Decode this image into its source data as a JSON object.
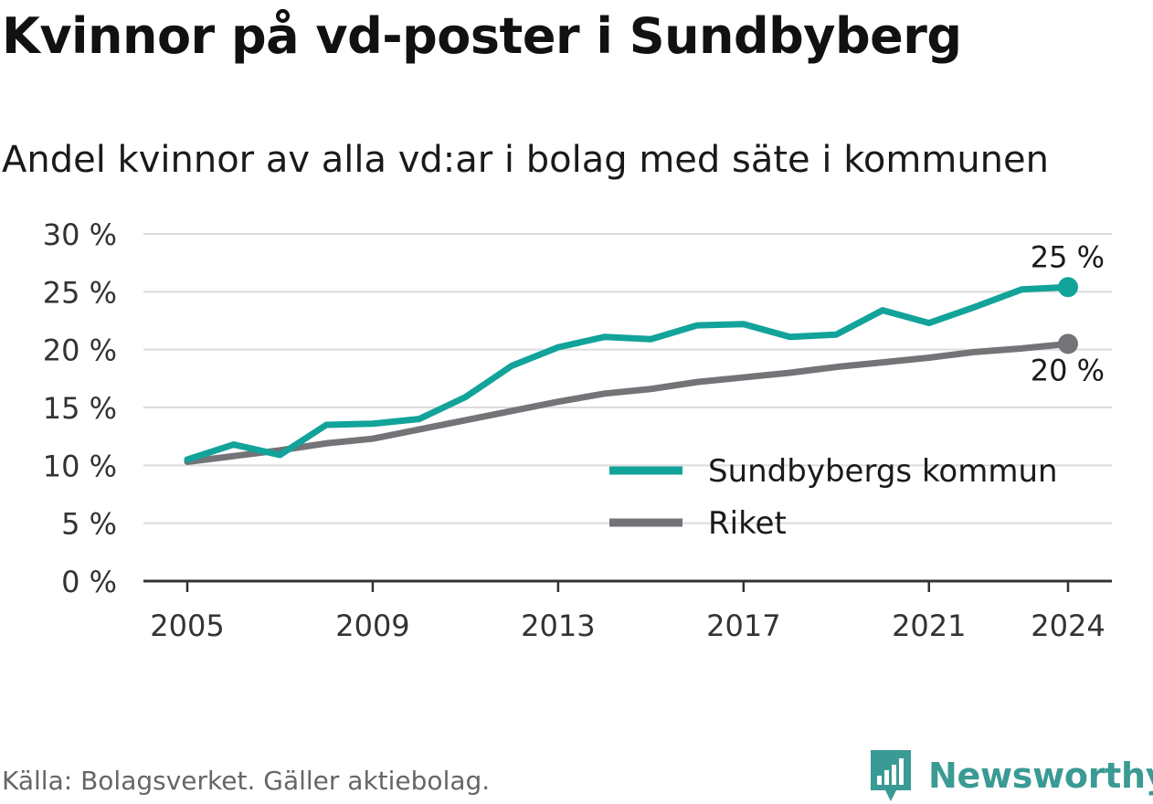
{
  "header": {
    "title": "Kvinnor på vd-poster i Sundbyberg",
    "subtitle": "Andel kvinnor av alla vd:ar i bolag med säte i kommunen"
  },
  "footer": {
    "source": "Källa: Bolagsverket. Gäller aktiebolag.",
    "brand": "Newsworthy"
  },
  "colors": {
    "sundbyberg": "#12a39a",
    "riket": "#737378",
    "grid": "#dcdcdc",
    "axis": "#333333",
    "brand": "#3a9a94"
  },
  "chart_data": {
    "type": "line",
    "title": "Kvinnor på vd-poster i Sundbyberg",
    "subtitle": "Andel kvinnor av alla vd:ar i bolag med säte i kommunen",
    "xlabel": "",
    "ylabel": "",
    "x": [
      2005,
      2006,
      2007,
      2008,
      2009,
      2010,
      2011,
      2012,
      2013,
      2014,
      2015,
      2016,
      2017,
      2018,
      2019,
      2020,
      2021,
      2022,
      2023,
      2024
    ],
    "x_ticks": [
      "2005",
      "2009",
      "2013",
      "2017",
      "2021",
      "2024"
    ],
    "ylim": [
      0,
      30
    ],
    "y_ticks": [
      "0 %",
      "5 %",
      "10 %",
      "15 %",
      "20 %",
      "25 %",
      "30 %"
    ],
    "grid": true,
    "legend_position": "lower-right",
    "series": [
      {
        "name": "Sundbybergs kommun",
        "color": "#12a39a",
        "values": [
          10.5,
          11.8,
          10.9,
          13.5,
          13.6,
          14.0,
          15.9,
          18.6,
          20.2,
          21.1,
          20.9,
          22.1,
          22.2,
          21.1,
          21.3,
          23.4,
          22.3,
          23.7,
          25.2,
          25.4
        ],
        "end_label": "25 %"
      },
      {
        "name": "Riket",
        "color": "#737378",
        "values": [
          10.3,
          10.8,
          11.3,
          11.9,
          12.3,
          13.1,
          13.9,
          14.7,
          15.5,
          16.2,
          16.6,
          17.2,
          17.6,
          18.0,
          18.5,
          18.9,
          19.3,
          19.8,
          20.1,
          20.5
        ],
        "end_label": "20 %"
      }
    ]
  }
}
